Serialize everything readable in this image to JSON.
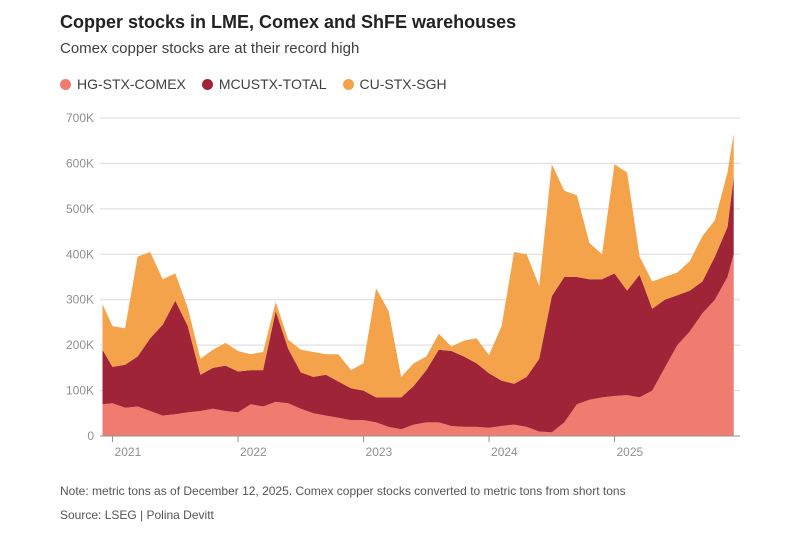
{
  "title": "Copper stocks in LME, Comex and ShFE warehouses",
  "subtitle": "Comex copper stocks are at their record high",
  "note": "Note: metric tons as of December 12, 2025. Comex copper stocks converted to metric tons from short tons",
  "source": "Source: LSEG | Polina Devitt",
  "colors": {
    "comex": "#f07b6f",
    "lme": "#9f2437",
    "shfe": "#f4a34b",
    "grid": "#d9d9d9",
    "axis": "#909090"
  },
  "chart_data": {
    "type": "area",
    "stacked": true,
    "x_start": "2020-12",
    "x_end": "2025-12",
    "xlabel": "",
    "ylabel": "",
    "ylim": [
      0,
      700000
    ],
    "y_ticks": [
      "0",
      "100K",
      "200K",
      "300K",
      "400K",
      "500K",
      "600K",
      "700K"
    ],
    "y_tick_values": [
      0,
      100000,
      200000,
      300000,
      400000,
      500000,
      600000,
      700000
    ],
    "x_ticks": [
      "2021",
      "2022",
      "2023",
      "2024",
      "2025"
    ],
    "x_tick_values": [
      2021,
      2022,
      2023,
      2024,
      2025
    ],
    "grid": true,
    "legend_position": "top-left",
    "x": [
      2020.92,
      2021.0,
      2021.1,
      2021.2,
      2021.3,
      2021.4,
      2021.5,
      2021.6,
      2021.7,
      2021.8,
      2021.9,
      2022.0,
      2022.1,
      2022.2,
      2022.3,
      2022.4,
      2022.5,
      2022.6,
      2022.7,
      2022.8,
      2022.9,
      2023.0,
      2023.1,
      2023.2,
      2023.3,
      2023.4,
      2023.5,
      2023.6,
      2023.7,
      2023.8,
      2023.9,
      2024.0,
      2024.1,
      2024.2,
      2024.3,
      2024.4,
      2024.5,
      2024.6,
      2024.7,
      2024.8,
      2024.9,
      2025.0,
      2025.1,
      2025.2,
      2025.3,
      2025.4,
      2025.5,
      2025.6,
      2025.7,
      2025.8,
      2025.9,
      2025.95
    ],
    "series": [
      {
        "name": "HG-STX-COMEX",
        "color_key": "comex",
        "values": [
          70000,
          72000,
          62000,
          65000,
          55000,
          45000,
          48000,
          52000,
          55000,
          60000,
          55000,
          52000,
          70000,
          65000,
          75000,
          72000,
          60000,
          50000,
          45000,
          40000,
          35000,
          35000,
          30000,
          20000,
          15000,
          25000,
          30000,
          30000,
          22000,
          20000,
          20000,
          18000,
          22000,
          25000,
          20000,
          10000,
          8000,
          30000,
          70000,
          80000,
          85000,
          88000,
          90000,
          85000,
          100000,
          150000,
          200000,
          230000,
          270000,
          300000,
          350000,
          400000
        ]
      },
      {
        "name": "MCUSTX-TOTAL",
        "color_key": "lme",
        "values": [
          120000,
          80000,
          95000,
          110000,
          160000,
          200000,
          250000,
          190000,
          80000,
          90000,
          100000,
          90000,
          75000,
          80000,
          200000,
          120000,
          80000,
          80000,
          90000,
          80000,
          70000,
          65000,
          55000,
          65000,
          70000,
          85000,
          115000,
          160000,
          165000,
          155000,
          140000,
          120000,
          100000,
          90000,
          110000,
          160000,
          300000,
          320000,
          280000,
          265000,
          260000,
          270000,
          230000,
          270000,
          180000,
          150000,
          110000,
          90000,
          70000,
          95000,
          110000,
          170000
        ]
      },
      {
        "name": "CU-STX-SGH",
        "color_key": "shfe",
        "values": [
          100000,
          90000,
          80000,
          220000,
          190000,
          100000,
          60000,
          40000,
          35000,
          40000,
          50000,
          45000,
          35000,
          40000,
          20000,
          20000,
          50000,
          55000,
          45000,
          60000,
          40000,
          60000,
          240000,
          190000,
          45000,
          50000,
          30000,
          35000,
          10000,
          35000,
          55000,
          40000,
          120000,
          290000,
          270000,
          160000,
          290000,
          190000,
          180000,
          80000,
          55000,
          240000,
          260000,
          40000,
          60000,
          50000,
          50000,
          65000,
          100000,
          80000,
          120000,
          95000
        ]
      }
    ]
  }
}
